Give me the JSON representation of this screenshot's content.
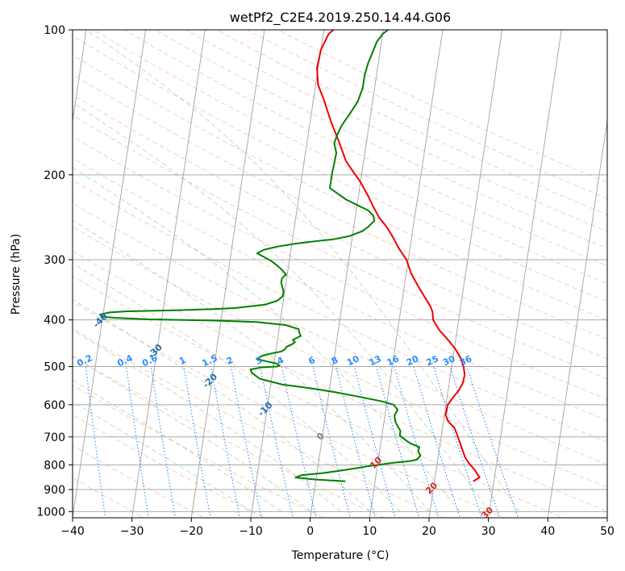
{
  "chart_data": {
    "type": "line",
    "title": "wetPf2_C2E4.2019.250.14.44.G06",
    "xlabel": "Temperature (°C)",
    "ylabel": "Pressure (hPa)",
    "xlim": [
      -40,
      50
    ],
    "ylim": [
      1030,
      100
    ],
    "y_scale": "log",
    "grid": true,
    "x_ticks": [
      -40,
      -30,
      -20,
      -10,
      0,
      10,
      20,
      30,
      40,
      50
    ],
    "y_ticks": [
      100,
      200,
      300,
      400,
      500,
      600,
      700,
      800,
      900,
      1000
    ],
    "isotherms": [
      -100,
      -90,
      -80,
      -70,
      -60,
      -50,
      -40,
      -30,
      -20,
      -10,
      0,
      10,
      20,
      30,
      40
    ],
    "mixing_ratios": [
      0.1,
      0.2,
      0.4,
      0.6,
      1,
      1.5,
      2,
      3,
      4,
      6,
      8,
      10,
      13,
      16,
      20,
      25,
      30,
      36
    ],
    "mixing_ratio_label_pressure": 500,
    "series": [
      {
        "color": "#ee0000",
        "points": [
          [
            26.5,
            865
          ],
          [
            27.5,
            850
          ],
          [
            26.5,
            820
          ],
          [
            25.2,
            790
          ],
          [
            24.5,
            770
          ],
          [
            23.8,
            740
          ],
          [
            23.2,
            715
          ],
          [
            22.7,
            695
          ],
          [
            22.0,
            670
          ],
          [
            20.8,
            650
          ],
          [
            20.2,
            630
          ],
          [
            20.3,
            600
          ],
          [
            21.0,
            580
          ],
          [
            21.8,
            560
          ],
          [
            22.3,
            540
          ],
          [
            22.4,
            520
          ],
          [
            22.0,
            500
          ],
          [
            21.3,
            480
          ],
          [
            20.2,
            460
          ],
          [
            18.7,
            440
          ],
          [
            17.0,
            420
          ],
          [
            15.7,
            400
          ],
          [
            15.4,
            385
          ],
          [
            14.9,
            375
          ],
          [
            13.8,
            360
          ],
          [
            12.3,
            340
          ],
          [
            10.8,
            320
          ],
          [
            9.7,
            300
          ],
          [
            8.2,
            285
          ],
          [
            6.9,
            270
          ],
          [
            5.6,
            257
          ],
          [
            4.0,
            245
          ],
          [
            2.8,
            233
          ],
          [
            1.5,
            220
          ],
          [
            0.0,
            207
          ],
          [
            -1.5,
            197
          ],
          [
            -3.0,
            187
          ],
          [
            -4.5,
            172
          ],
          [
            -6.5,
            155
          ],
          [
            -8.2,
            140
          ],
          [
            -9.6,
            130
          ],
          [
            -10.2,
            120
          ],
          [
            -10.0,
            110
          ],
          [
            -9.1,
            102
          ],
          [
            -8.4,
            100
          ]
        ]
      },
      {
        "color": "#008000",
        "points": [
          [
            5.0,
            865
          ],
          [
            1.5,
            860
          ],
          [
            0.0,
            858
          ],
          [
            -3.5,
            850
          ],
          [
            -2.5,
            840
          ],
          [
            1.0,
            832
          ],
          [
            4.5,
            820
          ],
          [
            8.5,
            805
          ],
          [
            12.5,
            792
          ],
          [
            15.5,
            785
          ],
          [
            16.5,
            780
          ],
          [
            17.0,
            765
          ],
          [
            16.5,
            750
          ],
          [
            16.6,
            735
          ],
          [
            15.0,
            722
          ],
          [
            14.2,
            712
          ],
          [
            13.0,
            695
          ],
          [
            13.0,
            680
          ],
          [
            12.4,
            665
          ],
          [
            11.9,
            650
          ],
          [
            11.6,
            632
          ],
          [
            12.0,
            615
          ],
          [
            11.2,
            600
          ],
          [
            9.0,
            590
          ],
          [
            5.0,
            577
          ],
          [
            1.0,
            565
          ],
          [
            -3.0,
            555
          ],
          [
            -8.0,
            545
          ],
          [
            -12.0,
            530
          ],
          [
            -13.5,
            515
          ],
          [
            -13.8,
            507
          ],
          [
            -12.0,
            502
          ],
          [
            -9.5,
            500
          ],
          [
            -9.0,
            498
          ],
          [
            -9.5,
            493
          ],
          [
            -11.5,
            487
          ],
          [
            -13.0,
            482
          ],
          [
            -12.2,
            475
          ],
          [
            -10.8,
            470
          ],
          [
            -9.0,
            465
          ],
          [
            -8.5,
            460
          ],
          [
            -8.3,
            455
          ],
          [
            -7.5,
            450
          ],
          [
            -7.0,
            445
          ],
          [
            -7.4,
            440
          ],
          [
            -6.2,
            432
          ],
          [
            -6.5,
            425
          ],
          [
            -6.7,
            418
          ],
          [
            -9.0,
            410
          ],
          [
            -14.0,
            404
          ],
          [
            -22.0,
            401
          ],
          [
            -32.0,
            399
          ],
          [
            -38.0,
            396
          ],
          [
            -40.0,
            394
          ],
          [
            -40.5,
            390
          ],
          [
            -39.0,
            386
          ],
          [
            -36.0,
            384
          ],
          [
            -28.0,
            382
          ],
          [
            -22.0,
            380
          ],
          [
            -18.0,
            378
          ],
          [
            -13.0,
            372
          ],
          [
            -11.0,
            365
          ],
          [
            -10.2,
            357
          ],
          [
            -10.2,
            349
          ],
          [
            -10.5,
            342
          ],
          [
            -10.8,
            335
          ],
          [
            -10.8,
            328
          ],
          [
            -10.2,
            322
          ],
          [
            -11.0,
            315
          ],
          [
            -12.0,
            308
          ],
          [
            -13.0,
            302
          ],
          [
            -14.4,
            296
          ],
          [
            -15.6,
            291
          ],
          [
            -14.5,
            286
          ],
          [
            -12.5,
            282
          ],
          [
            -9.5,
            278
          ],
          [
            -6.5,
            275
          ],
          [
            -3.0,
            272
          ],
          [
            -0.5,
            268
          ],
          [
            1.5,
            262
          ],
          [
            2.5,
            256
          ],
          [
            3.3,
            249
          ],
          [
            3.0,
            243
          ],
          [
            2.0,
            237
          ],
          [
            0.0,
            231
          ],
          [
            -2.0,
            225
          ],
          [
            -3.5,
            219
          ],
          [
            -5.0,
            213
          ],
          [
            -5.0,
            205
          ],
          [
            -5.0,
            198
          ],
          [
            -4.9,
            190
          ],
          [
            -4.8,
            180
          ],
          [
            -5.4,
            172
          ],
          [
            -5.1,
            165
          ],
          [
            -4.6,
            158
          ],
          [
            -3.6,
            150
          ],
          [
            -2.5,
            141
          ],
          [
            -2.0,
            132
          ],
          [
            -2.0,
            124
          ],
          [
            -1.7,
            117
          ],
          [
            -1.2,
            111
          ],
          [
            -0.8,
            106
          ],
          [
            0.0,
            102
          ],
          [
            0.8,
            100
          ]
        ]
      }
    ]
  }
}
